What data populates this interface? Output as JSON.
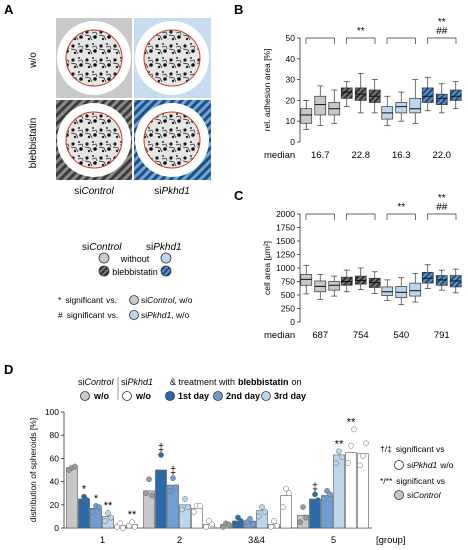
{
  "panels": {
    "a": "A",
    "b": "B",
    "c": "C",
    "d": "D"
  },
  "panel_a": {
    "row_labels": [
      "w/o",
      "blebbistatin"
    ],
    "col_labels": [
      {
        "pre": "si",
        "name": "Control"
      },
      {
        "pre": "si",
        "name": "Pkhd1"
      }
    ]
  },
  "legend_ab": {
    "col_headers": [
      {
        "pre": "si",
        "name": "Control"
      },
      {
        "pre": "si",
        "name": "Pkhd1"
      }
    ],
    "without": "without",
    "blebbistatin": "blebbistatin",
    "sig1_symbol": "*",
    "sig1_text": "significant",
    "vs1": "vs.",
    "sig1_ref_pre": "si",
    "sig1_ref_name": "Control",
    "sig1_ref_post": ", w/o",
    "sig2_symbol": "#",
    "sig2_text": "significant",
    "vs2": "vs.",
    "sig2_ref_pre": "si",
    "sig2_ref_name": "Pkhd1",
    "sig2_ref_post": ", w/o"
  },
  "colors": {
    "light_gray": "#c8c8c8",
    "dark_gray": "#5a5a5a",
    "light_blue": "#bcd6ee",
    "dark_blue": "#2a6aa8",
    "mid_blue": "#6f9fd2",
    "axis": "#333333"
  },
  "chart_data": [
    {
      "type": "box",
      "id": "B",
      "ylabel": "rel. adhesion area [%]",
      "ylim": [
        0,
        50
      ],
      "yticks": [
        0,
        10,
        20,
        30,
        40,
        50
      ],
      "median_label": "median",
      "medians": [
        "16.7",
        "22.8",
        "16.3",
        "22.0"
      ],
      "groups": [
        {
          "boxes": [
            {
              "min": 6,
              "q1": 9,
              "med": 13,
              "q3": 16,
              "max": 20
            },
            {
              "min": 8,
              "q1": 13,
              "med": 18,
              "q3": 22,
              "max": 27
            },
            {
              "min": 9,
              "q1": 13,
              "med": 16,
              "q3": 19,
              "max": 25
            }
          ]
        },
        {
          "boxes": [
            {
              "min": 17,
              "q1": 21,
              "med": 24,
              "q3": 26,
              "max": 29
            },
            {
              "min": 14,
              "q1": 20,
              "med": 23,
              "q3": 26,
              "max": 33
            },
            {
              "min": 14,
              "q1": 19,
              "med": 22,
              "q3": 25,
              "max": 30
            }
          ]
        },
        {
          "boxes": [
            {
              "min": 8,
              "q1": 11,
              "med": 14,
              "q3": 17,
              "max": 22
            },
            {
              "min": 10,
              "q1": 14,
              "med": 17,
              "q3": 19,
              "max": 24
            },
            {
              "min": 9,
              "q1": 14,
              "med": 16,
              "q3": 21,
              "max": 30
            }
          ]
        },
        {
          "boxes": [
            {
              "min": 15,
              "q1": 19,
              "med": 22,
              "q3": 26,
              "max": 31
            },
            {
              "min": 14,
              "q1": 18,
              "med": 21,
              "q3": 23,
              "max": 28
            },
            {
              "min": 16,
              "q1": 20,
              "med": 22,
              "q3": 25,
              "max": 29
            }
          ]
        }
      ],
      "sig_marks": [
        {
          "group": 2,
          "text": "**"
        },
        {
          "group": 4,
          "text": "**"
        },
        {
          "group": 4,
          "text": "##"
        }
      ]
    },
    {
      "type": "box",
      "id": "C",
      "ylabel": "cell area [μm²]",
      "ylim": [
        0,
        2000
      ],
      "yticks": [
        0,
        250,
        500,
        750,
        1000,
        1250,
        1500,
        1750,
        2000
      ],
      "median_label": "median",
      "medians": [
        "687",
        "754",
        "540",
        "791"
      ],
      "groups": [
        {
          "boxes": [
            {
              "min": 520,
              "q1": 680,
              "med": 790,
              "q3": 880,
              "max": 1050
            },
            {
              "min": 420,
              "q1": 560,
              "med": 660,
              "q3": 760,
              "max": 880
            },
            {
              "min": 480,
              "q1": 590,
              "med": 680,
              "q3": 750,
              "max": 850
            }
          ]
        },
        {
          "boxes": [
            {
              "min": 560,
              "q1": 680,
              "med": 750,
              "q3": 830,
              "max": 960
            },
            {
              "min": 600,
              "q1": 700,
              "med": 770,
              "q3": 850,
              "max": 1000
            },
            {
              "min": 530,
              "q1": 640,
              "med": 730,
              "q3": 810,
              "max": 930
            }
          ]
        },
        {
          "boxes": [
            {
              "min": 400,
              "q1": 490,
              "med": 560,
              "q3": 650,
              "max": 780
            },
            {
              "min": 320,
              "q1": 450,
              "med": 550,
              "q3": 660,
              "max": 820
            },
            {
              "min": 370,
              "q1": 480,
              "med": 580,
              "q3": 720,
              "max": 900
            }
          ]
        },
        {
          "boxes": [
            {
              "min": 620,
              "q1": 720,
              "med": 810,
              "q3": 920,
              "max": 1060
            },
            {
              "min": 590,
              "q1": 680,
              "med": 780,
              "q3": 860,
              "max": 960
            },
            {
              "min": 540,
              "q1": 650,
              "med": 760,
              "q3": 860,
              "max": 980
            }
          ]
        }
      ],
      "sig_marks": [
        {
          "group": 3,
          "text": "**"
        },
        {
          "group": 4,
          "text": "**"
        },
        {
          "group": 4,
          "text": "##"
        }
      ]
    },
    {
      "type": "bar",
      "id": "D",
      "ylabel": "distribution of spheroids [%]",
      "ylim": [
        0,
        100
      ],
      "yticks": [
        0,
        20,
        40,
        60,
        80,
        100
      ],
      "xlabel": "[group]",
      "categories": [
        "1",
        "2",
        "3&4",
        "5"
      ],
      "series": [
        {
          "values": [
            52,
            32,
            3,
            11
          ],
          "dots": [
            [
              50,
              52,
              53
            ],
            [
              30,
              42,
              28
            ],
            [
              1,
              4,
              3
            ],
            [
              5,
              18,
              9
            ]
          ]
        },
        {
          "values": [
            25,
            50,
            6,
            25
          ],
          "dots": [
            [
              22,
              27,
              24
            ],
            [
              48,
              63,
              46
            ],
            [
              4,
              9,
              6
            ],
            [
              22,
              29,
              24
            ]
          ]
        },
        {
          "values": [
            17,
            37,
            6,
            28
          ],
          "dots": [
            [
              14,
              19,
              18
            ],
            [
              32,
              43,
              35
            ],
            [
              5,
              8,
              3
            ],
            [
              25,
              32,
              29
            ]
          ]
        },
        {
          "values": [
            10,
            20,
            15,
            63
          ],
          "dots": [
            [
              6,
              13,
              9
            ],
            [
              16,
              25,
              18
            ],
            [
              10,
              18,
              14
            ],
            [
              56,
              66,
              61
            ]
          ]
        },
        {
          "values": [
            2,
            17,
            3,
            65
          ],
          "dots": [
            [
              1,
              4,
              0
            ],
            [
              14,
              19,
              19
            ],
            [
              1,
              6,
              2
            ],
            [
              56,
              71,
              85
            ]
          ]
        },
        {
          "values": [
            3,
            3,
            28,
            64
          ],
          "dots": [
            [
              2,
              5,
              1
            ],
            [
              1,
              6,
              3
            ],
            [
              18,
              34,
              30
            ],
            [
              54,
              62,
              73
            ]
          ]
        }
      ],
      "sig_marks": [
        {
          "cat": 0,
          "series": 1,
          "text": "*"
        },
        {
          "cat": 0,
          "series": 2,
          "text": "*"
        },
        {
          "cat": 0,
          "series": 3,
          "text": "**"
        },
        {
          "cat": 0,
          "series": 5,
          "text": "**"
        },
        {
          "cat": 1,
          "series": 1,
          "text": "‡"
        },
        {
          "cat": 1,
          "series": 2,
          "text": "‡"
        },
        {
          "cat": 3,
          "series": 1,
          "text": "‡"
        },
        {
          "cat": 3,
          "series": 3,
          "text": "**"
        },
        {
          "cat": 3,
          "series": 4,
          "text": "**"
        }
      ]
    }
  ],
  "legend_d": {
    "col1": {
      "pre": "si",
      "name": "Control",
      "sub": "w/o"
    },
    "col2": {
      "pre": "si",
      "name": "Pkhd1",
      "sub": "w/o"
    },
    "treat_text": "& treatment with",
    "treat_bold": "blebbistatin",
    "treat_on": "on",
    "day1": "1st day",
    "day2": "2nd day",
    "day3": "3rd day",
    "right1_symbol": "†/‡",
    "right1_text": "significant vs",
    "right1_ref_pre": "si",
    "right1_ref_name": "Pkhd1",
    "right1_ref_post": "w/o",
    "right2_symbol": "*/**",
    "right2_text": "significant vs",
    "right2_ref_pre": "si",
    "right2_ref_name": "Control"
  }
}
